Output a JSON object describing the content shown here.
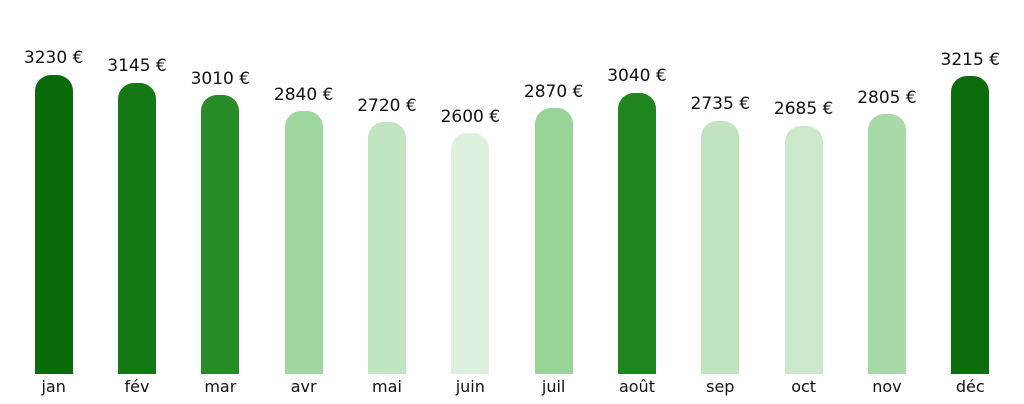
{
  "chart": {
    "background_color": "#ffffff",
    "text_color": "#111111",
    "currency_suffix": "€"
  },
  "chart_data": {
    "type": "bar",
    "title": "",
    "xlabel": "",
    "ylabel": "",
    "categories": [
      "jan",
      "fév",
      "mar",
      "avr",
      "mai",
      "juin",
      "juil",
      "août",
      "sep",
      "oct",
      "nov",
      "déc"
    ],
    "values": [
      3230,
      3145,
      3010,
      2840,
      2720,
      2600,
      2870,
      3040,
      2735,
      2685,
      2805,
      3215
    ],
    "value_labels": [
      "3230 €",
      "3145 €",
      "3010 €",
      "2840 €",
      "2720 €",
      "2600 €",
      "2870 €",
      "3040 €",
      "2735 €",
      "2685 €",
      "2805 €",
      "3215 €"
    ],
    "bar_colors": [
      "#0a6b0a",
      "#147814",
      "#278b27",
      "#a0d6a0",
      "#c1e5c1",
      "#def1de",
      "#98d398",
      "#1f851f",
      "#c0e4c0",
      "#cce8ca",
      "#a8daa8",
      "#0b6d0b"
    ],
    "ylim": [
      0,
      3230
    ],
    "grid": false,
    "legend": null,
    "axes_visible": false,
    "value_label_position": "above-bar",
    "bar_shape": "rounded-top"
  }
}
